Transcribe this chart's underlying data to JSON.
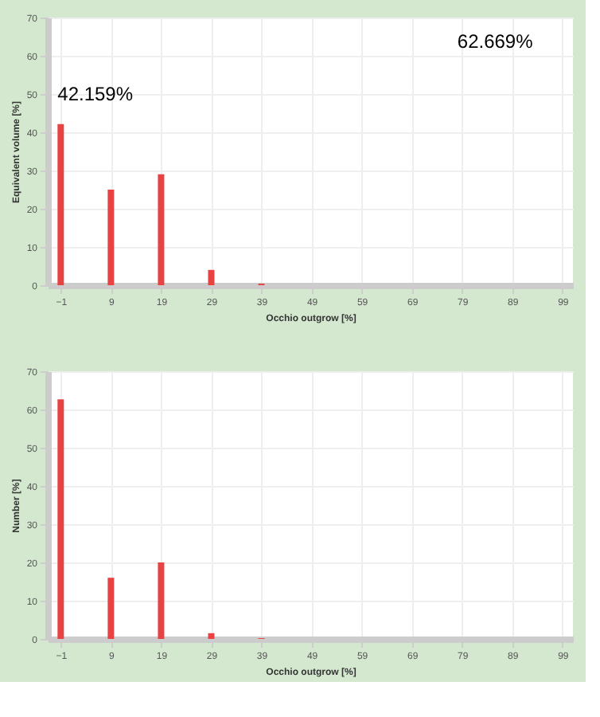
{
  "chart_data": [
    {
      "type": "bar",
      "xlabel": "Occhio outgrow [%]",
      "ylabel": "Equivalent volume [%]",
      "x": [
        -1,
        9,
        19,
        29,
        39
      ],
      "series": [
        {
          "color": "#e84343",
          "values": [
            42.159,
            25,
            29,
            4,
            0.4
          ]
        }
      ],
      "xlim": [
        -2,
        99.5
      ],
      "xticks": [
        -1,
        9,
        19,
        29,
        39,
        49,
        59,
        69,
        79,
        89,
        99
      ],
      "ylim": [
        0,
        70
      ],
      "yticks": [
        0,
        10,
        20,
        30,
        40,
        50,
        60,
        70
      ],
      "grid": true,
      "value_labels": [
        "42.159%",
        null,
        null,
        null,
        null
      ],
      "annotations": [
        "62.669%"
      ]
    },
    {
      "type": "bar",
      "xlabel": "Occhio outgrow [%]",
      "ylabel": "Number [%]",
      "x": [
        -1,
        9,
        19,
        29,
        39
      ],
      "series": [
        {
          "color": "#e84343",
          "values": [
            62.669,
            16,
            20,
            1.5,
            0.2
          ]
        }
      ],
      "xlim": [
        -2,
        99.5
      ],
      "xticks": [
        -1,
        9,
        19,
        29,
        39,
        49,
        59,
        69,
        79,
        89,
        99
      ],
      "ylim": [
        0,
        70
      ],
      "yticks": [
        0,
        10,
        20,
        30,
        40,
        50,
        60,
        70
      ],
      "grid": true
    }
  ]
}
